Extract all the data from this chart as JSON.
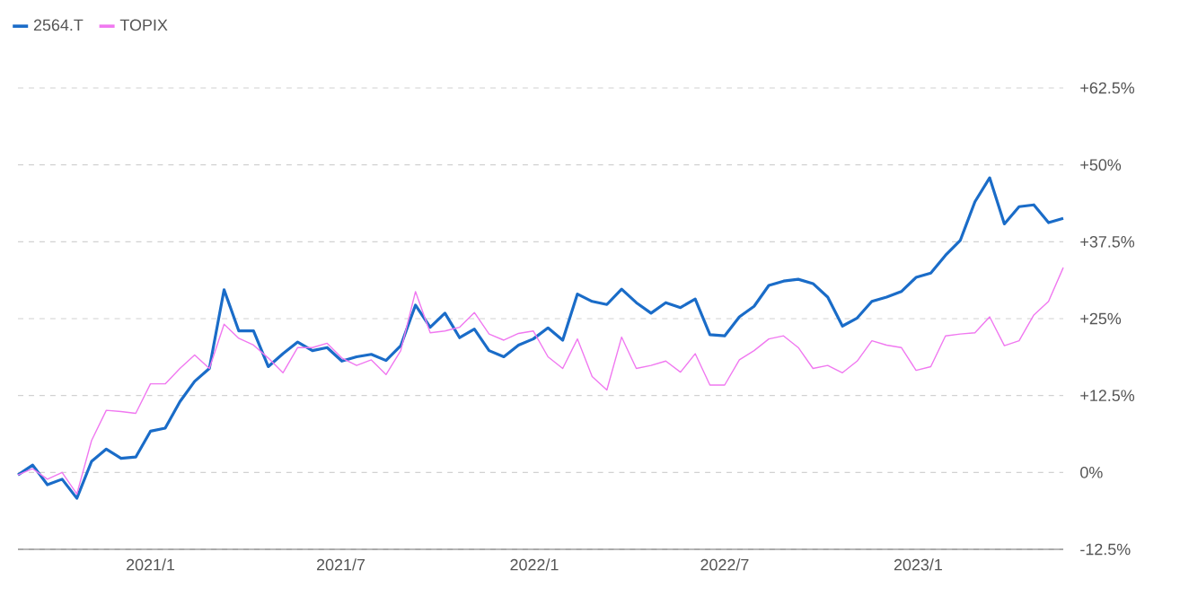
{
  "chart_data": {
    "type": "line",
    "x": [
      "2020-08-28",
      "2020-09-11",
      "2020-09-25",
      "2020-10-09",
      "2020-10-23",
      "2020-11-06",
      "2020-11-20",
      "2020-12-04",
      "2020-12-18",
      "2021-01-01",
      "2021-01-15",
      "2021-01-29",
      "2021-02-12",
      "2021-02-26",
      "2021-03-12",
      "2021-03-26",
      "2021-04-09",
      "2021-04-23",
      "2021-05-07",
      "2021-05-21",
      "2021-06-04",
      "2021-06-18",
      "2021-07-02",
      "2021-07-16",
      "2021-07-30",
      "2021-08-13",
      "2021-08-27",
      "2021-09-10",
      "2021-09-24",
      "2021-10-08",
      "2021-10-22",
      "2021-11-05",
      "2021-11-19",
      "2021-12-03",
      "2021-12-17",
      "2021-12-31",
      "2022-01-14",
      "2022-01-28",
      "2022-02-11",
      "2022-02-25",
      "2022-03-11",
      "2022-03-25",
      "2022-04-08",
      "2022-04-22",
      "2022-05-06",
      "2022-05-20",
      "2022-06-03",
      "2022-06-17",
      "2022-07-01",
      "2022-07-15",
      "2022-07-29",
      "2022-08-12",
      "2022-08-26",
      "2022-09-09",
      "2022-09-23",
      "2022-10-07",
      "2022-10-21",
      "2022-11-04",
      "2022-11-18",
      "2022-12-02",
      "2022-12-16",
      "2022-12-30",
      "2023-01-13",
      "2023-01-27",
      "2023-02-10",
      "2023-02-24",
      "2023-03-10",
      "2023-03-24",
      "2023-04-07",
      "2023-04-21",
      "2023-05-05",
      "2023-05-19"
    ],
    "series": [
      {
        "name": "2564.T",
        "color": "#1a6cc8",
        "values": [
          -0.4,
          1.2,
          -2.0,
          -1.1,
          -4.2,
          1.8,
          3.8,
          2.3,
          2.5,
          6.7,
          7.2,
          11.5,
          14.8,
          16.9,
          29.7,
          23.0,
          23.0,
          17.2,
          19.3,
          21.2,
          19.8,
          20.3,
          18.1,
          18.8,
          19.2,
          18.2,
          20.6,
          27.2,
          23.6,
          25.9,
          21.9,
          23.3,
          19.8,
          18.8,
          20.7,
          21.7,
          23.5,
          21.5,
          29.0,
          27.8,
          27.3,
          29.8,
          27.6,
          25.9,
          27.6,
          26.8,
          28.2,
          22.4,
          22.2,
          25.3,
          27.0,
          30.4,
          31.1,
          31.4,
          30.7,
          28.5,
          23.8,
          25.1,
          27.8,
          28.5,
          29.4,
          31.7,
          32.4,
          35.3,
          37.7,
          44.0,
          47.9,
          40.4,
          43.2,
          43.5,
          40.6,
          41.3
        ]
      },
      {
        "name": "TOPIX",
        "color": "#f078f0",
        "values": [
          -0.4,
          0.6,
          -1.1,
          0.0,
          -3.5,
          5.2,
          10.1,
          9.9,
          9.6,
          14.4,
          14.4,
          16.9,
          19.1,
          16.9,
          24.1,
          21.8,
          20.7,
          18.6,
          16.2,
          20.3,
          20.3,
          21.0,
          18.6,
          17.4,
          18.3,
          15.9,
          19.8,
          29.4,
          22.7,
          23.0,
          23.6,
          26.0,
          22.5,
          21.5,
          22.6,
          23.0,
          18.8,
          16.9,
          21.7,
          15.6,
          13.4,
          22.0,
          16.9,
          17.4,
          18.1,
          16.3,
          19.3,
          14.2,
          14.2,
          18.3,
          19.8,
          21.7,
          22.2,
          20.3,
          16.9,
          17.4,
          16.2,
          18.1,
          21.4,
          20.7,
          20.3,
          16.6,
          17.2,
          22.2,
          22.5,
          22.7,
          25.3,
          20.6,
          21.4,
          25.6,
          27.8,
          33.3
        ]
      }
    ],
    "xlim": [
      "2020-08-28",
      "2023-05-19"
    ],
    "xticks": [
      {
        "value": "2021-01-01",
        "label": "2021/1"
      },
      {
        "value": "2021-07-01",
        "label": "2021/7"
      },
      {
        "value": "2022-01-01",
        "label": "2022/1"
      },
      {
        "value": "2022-07-01",
        "label": "2022/7"
      },
      {
        "value": "2023-01-01",
        "label": "2023/1"
      }
    ],
    "ylim": [
      -12.5,
      62.5
    ],
    "yticks": [
      {
        "value": -12.5,
        "label": "-12.5%"
      },
      {
        "value": 0,
        "label": "0%"
      },
      {
        "value": 12.5,
        "label": "+12.5%"
      },
      {
        "value": 25,
        "label": "+25%"
      },
      {
        "value": 37.5,
        "label": "+37.5%"
      },
      {
        "value": 50,
        "label": "+50%"
      },
      {
        "value": 62.5,
        "label": "+62.5%"
      }
    ],
    "grid": "y",
    "legend": "top left",
    "marker": "none",
    "line_style": "solid"
  }
}
